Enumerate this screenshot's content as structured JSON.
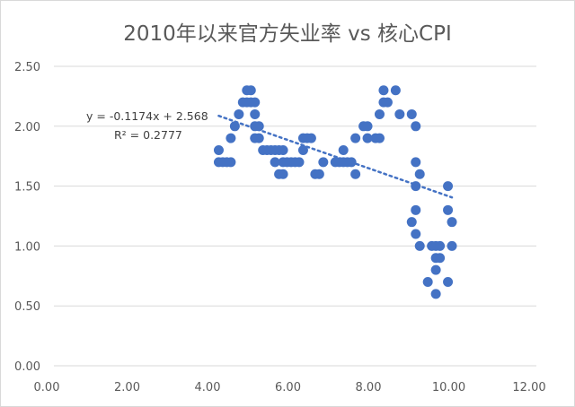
{
  "chart_data": {
    "type": "scatter",
    "title": "2010年以来官方失业率 vs 核心CPI",
    "xlabel": "",
    "ylabel": "",
    "xlim": [
      0,
      12
    ],
    "ylim": [
      0,
      2.5
    ],
    "x_ticks": [
      "0.00",
      "2.00",
      "4.00",
      "6.00",
      "8.00",
      "10.00",
      "12.00"
    ],
    "y_ticks": [
      "0.00",
      "0.50",
      "1.00",
      "1.50",
      "2.00",
      "2.50"
    ],
    "grid": {
      "horizontal": true,
      "vertical": false
    },
    "legend": null,
    "series": [
      {
        "name": "points",
        "color": "#4472c4",
        "points": [
          [
            4.1,
            1.8
          ],
          [
            4.1,
            1.7
          ],
          [
            4.2,
            1.7
          ],
          [
            4.3,
            1.7
          ],
          [
            4.4,
            1.7
          ],
          [
            4.4,
            1.9
          ],
          [
            4.5,
            2.0
          ],
          [
            4.6,
            2.1
          ],
          [
            4.7,
            2.2
          ],
          [
            4.8,
            2.2
          ],
          [
            4.8,
            2.3
          ],
          [
            4.9,
            2.3
          ],
          [
            4.9,
            2.2
          ],
          [
            5.0,
            2.2
          ],
          [
            5.0,
            2.1
          ],
          [
            5.0,
            2.0
          ],
          [
            5.0,
            1.9
          ],
          [
            5.1,
            2.0
          ],
          [
            5.1,
            1.9
          ],
          [
            5.2,
            1.8
          ],
          [
            5.3,
            1.8
          ],
          [
            5.4,
            1.8
          ],
          [
            5.5,
            1.8
          ],
          [
            5.6,
            1.8
          ],
          [
            5.5,
            1.7
          ],
          [
            5.6,
            1.6
          ],
          [
            5.7,
            1.6
          ],
          [
            5.7,
            1.7
          ],
          [
            5.8,
            1.7
          ],
          [
            5.9,
            1.7
          ],
          [
            5.7,
            1.8
          ],
          [
            6.0,
            1.7
          ],
          [
            6.1,
            1.7
          ],
          [
            6.2,
            1.8
          ],
          [
            6.2,
            1.9
          ],
          [
            6.3,
            1.9
          ],
          [
            6.4,
            1.9
          ],
          [
            6.5,
            1.6
          ],
          [
            6.6,
            1.6
          ],
          [
            6.7,
            1.7
          ],
          [
            7.0,
            1.7
          ],
          [
            7.1,
            1.7
          ],
          [
            7.2,
            1.8
          ],
          [
            7.2,
            1.7
          ],
          [
            7.3,
            1.7
          ],
          [
            7.4,
            1.7
          ],
          [
            7.5,
            1.6
          ],
          [
            7.5,
            1.9
          ],
          [
            7.7,
            2.0
          ],
          [
            7.8,
            2.0
          ],
          [
            7.8,
            1.9
          ],
          [
            8.0,
            1.9
          ],
          [
            8.1,
            1.9
          ],
          [
            8.1,
            2.1
          ],
          [
            8.2,
            2.2
          ],
          [
            8.2,
            2.3
          ],
          [
            8.3,
            2.2
          ],
          [
            8.5,
            2.3
          ],
          [
            8.6,
            2.1
          ],
          [
            8.9,
            2.1
          ],
          [
            9.0,
            2.0
          ],
          [
            9.0,
            1.7
          ],
          [
            9.1,
            1.6
          ],
          [
            9.0,
            1.5
          ],
          [
            9.0,
            1.3
          ],
          [
            8.9,
            1.2
          ],
          [
            9.0,
            1.1
          ],
          [
            9.1,
            1.0
          ],
          [
            9.4,
            1.0
          ],
          [
            9.5,
            1.0
          ],
          [
            9.6,
            1.0
          ],
          [
            9.5,
            0.9
          ],
          [
            9.6,
            0.9
          ],
          [
            9.5,
            0.8
          ],
          [
            9.3,
            0.7
          ],
          [
            9.5,
            0.6
          ],
          [
            9.8,
            1.5
          ],
          [
            9.8,
            1.3
          ],
          [
            9.9,
            1.2
          ],
          [
            9.9,
            1.0
          ],
          [
            9.8,
            0.7
          ]
        ]
      }
    ],
    "trendline": {
      "type": "linear",
      "equation": "y = -0.1174x + 2.568",
      "r_squared": "R² = 0.2777",
      "slope": -0.1174,
      "intercept": 2.568,
      "x_range": [
        4.1,
        9.9
      ],
      "style": "dotted",
      "color": "#4472c4"
    }
  }
}
